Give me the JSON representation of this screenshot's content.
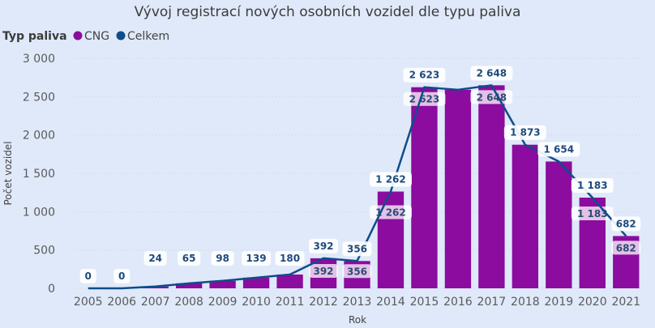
{
  "chart_data": {
    "type": "bar",
    "title": "Vývoj registrací nových osobních vozidel dle typu paliva",
    "legend_title": "Typ paliva",
    "legend_placement": "top-left",
    "xlabel": "Rok",
    "ylabel": "Počet vozidel",
    "ylim": [
      0,
      3000
    ],
    "yticks": [
      "0",
      "500",
      "1 000",
      "1 500",
      "2 000",
      "2 500",
      "3 000"
    ],
    "ytick_values": [
      0,
      500,
      1000,
      1500,
      2000,
      2500,
      3000
    ],
    "categories": [
      "2005",
      "2006",
      "2007",
      "2008",
      "2009",
      "2010",
      "2011",
      "2012",
      "2013",
      "2014",
      "2015",
      "2016",
      "2017",
      "2018",
      "2019",
      "2020",
      "2021"
    ],
    "series": [
      {
        "name": "CNG",
        "type": "bar",
        "color": "#8b0c9e",
        "values": [
          0,
          0,
          24,
          65,
          98,
          139,
          180,
          392,
          356,
          1262,
          2623,
          2590,
          2648,
          1873,
          1654,
          1183,
          682
        ],
        "labels": [
          "",
          "",
          "",
          "",
          "",
          "",
          "",
          "392",
          "356",
          "1 262",
          "2 623",
          "",
          "2 648",
          "",
          "",
          "1 183",
          "682"
        ]
      },
      {
        "name": "Celkem",
        "type": "line",
        "color": "#0f4c8a",
        "values": [
          0,
          0,
          24,
          65,
          98,
          139,
          180,
          392,
          356,
          1262,
          2623,
          2590,
          2648,
          1873,
          1654,
          1183,
          682
        ],
        "labels": [
          "0",
          "0",
          "24",
          "65",
          "98",
          "139",
          "180",
          "392",
          "356",
          "1 262",
          "2 623",
          "",
          "2 648",
          "1 873",
          "1 654",
          "1 183",
          "682"
        ]
      }
    ],
    "grid": true
  }
}
